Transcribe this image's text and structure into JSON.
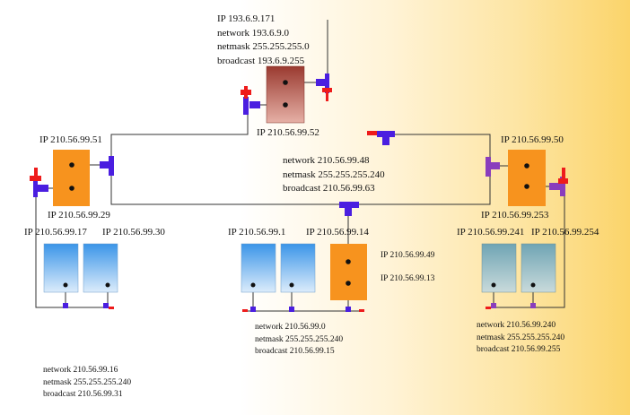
{
  "router_top": {
    "info": [
      "IP 193.6.9.171",
      "network 193.6.9.0",
      "netmask 255.255.255.0",
      "broadcast 193.6.9.255"
    ],
    "ip_bottom": "IP 210.56.99.52"
  },
  "core_net": {
    "info": [
      "network 210.56.99.48",
      "netmask 255.255.255.240",
      "broadcast 210.56.99.63"
    ]
  },
  "router_left": {
    "ip_top": "IP 210.56.99.51",
    "ip_bottom": "IP 210.56.99.29"
  },
  "router_right": {
    "ip_top": "IP 210.56.99.50",
    "ip_bottom": "IP 210.56.99.253"
  },
  "router_mid": {
    "ip_top": "IP 210.56.99.14",
    "ip_right_1": "IP 210.56.99.49",
    "ip_right_2": "IP 210.56.99.13"
  },
  "left_lan": {
    "hosts": [
      "IP 210.56.99.17",
      "IP 210.56.99.30"
    ],
    "info": [
      "network 210.56.99.16",
      "netmask 255.255.255.240",
      "broadcast 210.56.99.31"
    ]
  },
  "mid_lan": {
    "host": "IP 210.56.99.1",
    "info": [
      "network 210.56.99.0",
      "netmask 255.255.255.240",
      "broadcast 210.56.99.15"
    ]
  },
  "right_lan": {
    "hosts": [
      "IP 210.56.99.241",
      "IP 210.56.99.254"
    ],
    "info": [
      "network 210.56.99.240",
      "netmask 255.255.255.240",
      "broadcast 210.56.99.255"
    ]
  },
  "colors": {
    "router_orange": "#f7931e",
    "router_maroon": "#b5544a",
    "host_blue": "#3b95e8",
    "host_teal": "#6fa4b4",
    "connector_blue": "#4a1ee0",
    "connector_purple": "#8a3dbd",
    "connector_red": "#ee1b1b"
  }
}
